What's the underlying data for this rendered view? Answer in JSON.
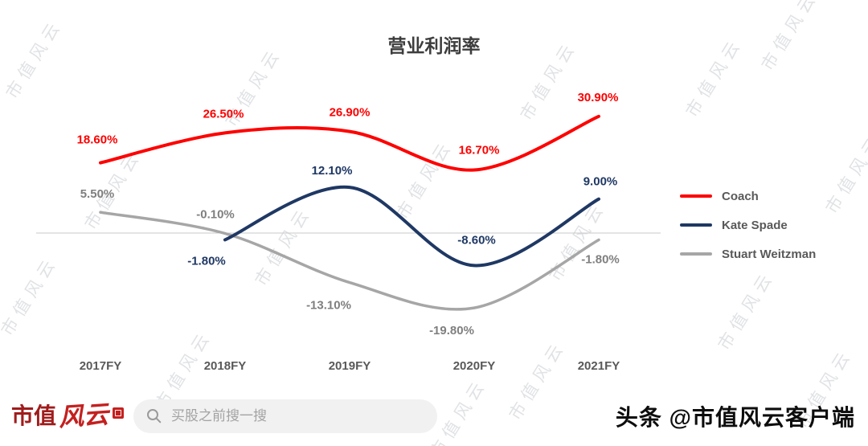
{
  "watermark": "市值风云",
  "chart_data": {
    "type": "line",
    "title": "营业利润率",
    "categories": [
      "2017FY",
      "2018FY",
      "2019FY",
      "2020FY",
      "2021FY"
    ],
    "series": [
      {
        "name": "Coach",
        "color": "#fe0000",
        "label_color": "#fe0000",
        "values": [
          18.6,
          26.5,
          26.9,
          16.7,
          30.9
        ],
        "labels": [
          "18.60%",
          "26.50%",
          "26.90%",
          "16.70%",
          "30.90%"
        ]
      },
      {
        "name": "Kate Spade",
        "color": "#1f3864",
        "label_color": "#1f3864",
        "values": [
          null,
          -1.8,
          12.1,
          -8.6,
          9.0
        ],
        "labels": [
          null,
          "-1.80%",
          "12.10%",
          "-8.60%",
          "9.00%"
        ]
      },
      {
        "name": "Stuart Weitzman",
        "color": "#a6a6a6",
        "label_color": "#7f7f7f",
        "values": [
          5.5,
          -0.1,
          -13.1,
          -19.8,
          -1.8
        ],
        "labels": [
          "5.50%",
          "-0.10%",
          "-13.10%",
          "-19.80%",
          "-1.80%"
        ]
      }
    ],
    "ylim": [
      -25,
      35
    ],
    "grid": false,
    "zero_line": true,
    "legend_position": "right"
  },
  "footer": {
    "logo_text_1": "市值",
    "logo_text_2": "风云",
    "search_placeholder": "买股之前搜一搜",
    "byline": "头条 @市值风云客户端"
  }
}
